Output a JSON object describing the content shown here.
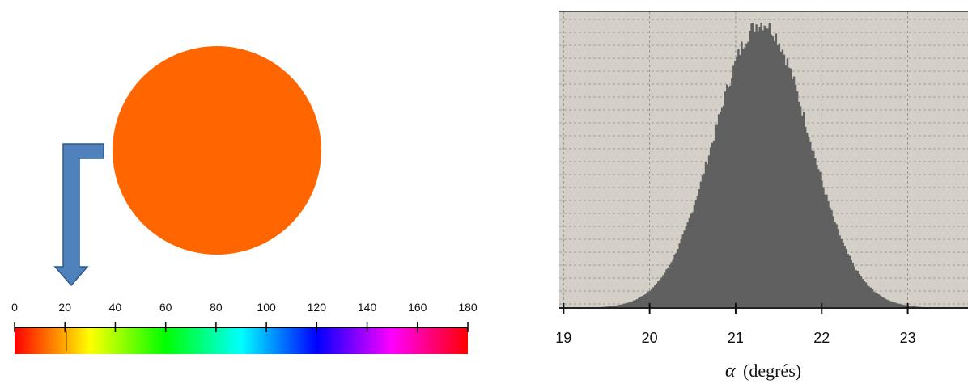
{
  "sample": {
    "color": "#ff6600",
    "hue_value": 22
  },
  "hue_scale": {
    "min": 0,
    "max": 180,
    "tick_labels": [
      "0",
      "20",
      "40",
      "60",
      "80",
      "100",
      "120",
      "140",
      "160",
      "180"
    ],
    "tick_values": [
      0,
      20,
      40,
      60,
      80,
      100,
      120,
      140,
      160,
      180
    ]
  },
  "arrow": {
    "color": "#4f81bd",
    "border_color": "#2f5a8a",
    "icon": "bent-down-arrow-icon"
  },
  "chart_data": {
    "type": "bar",
    "title": "",
    "xlabel": "α (degrés)",
    "xlabel_symbol": "α",
    "xlabel_text": "(degrés)",
    "ylabel": "",
    "xlim": [
      18.95,
      23.7
    ],
    "x_ticks": [
      19,
      20,
      21,
      22,
      23
    ],
    "x_tick_labels": [
      "19",
      "20",
      "21",
      "22",
      "23"
    ],
    "grid": true,
    "bar_color": "#606060",
    "background_color": "#d4d0c8",
    "distribution": {
      "shape": "gaussian",
      "mean": 21.3,
      "std": 0.55
    }
  }
}
